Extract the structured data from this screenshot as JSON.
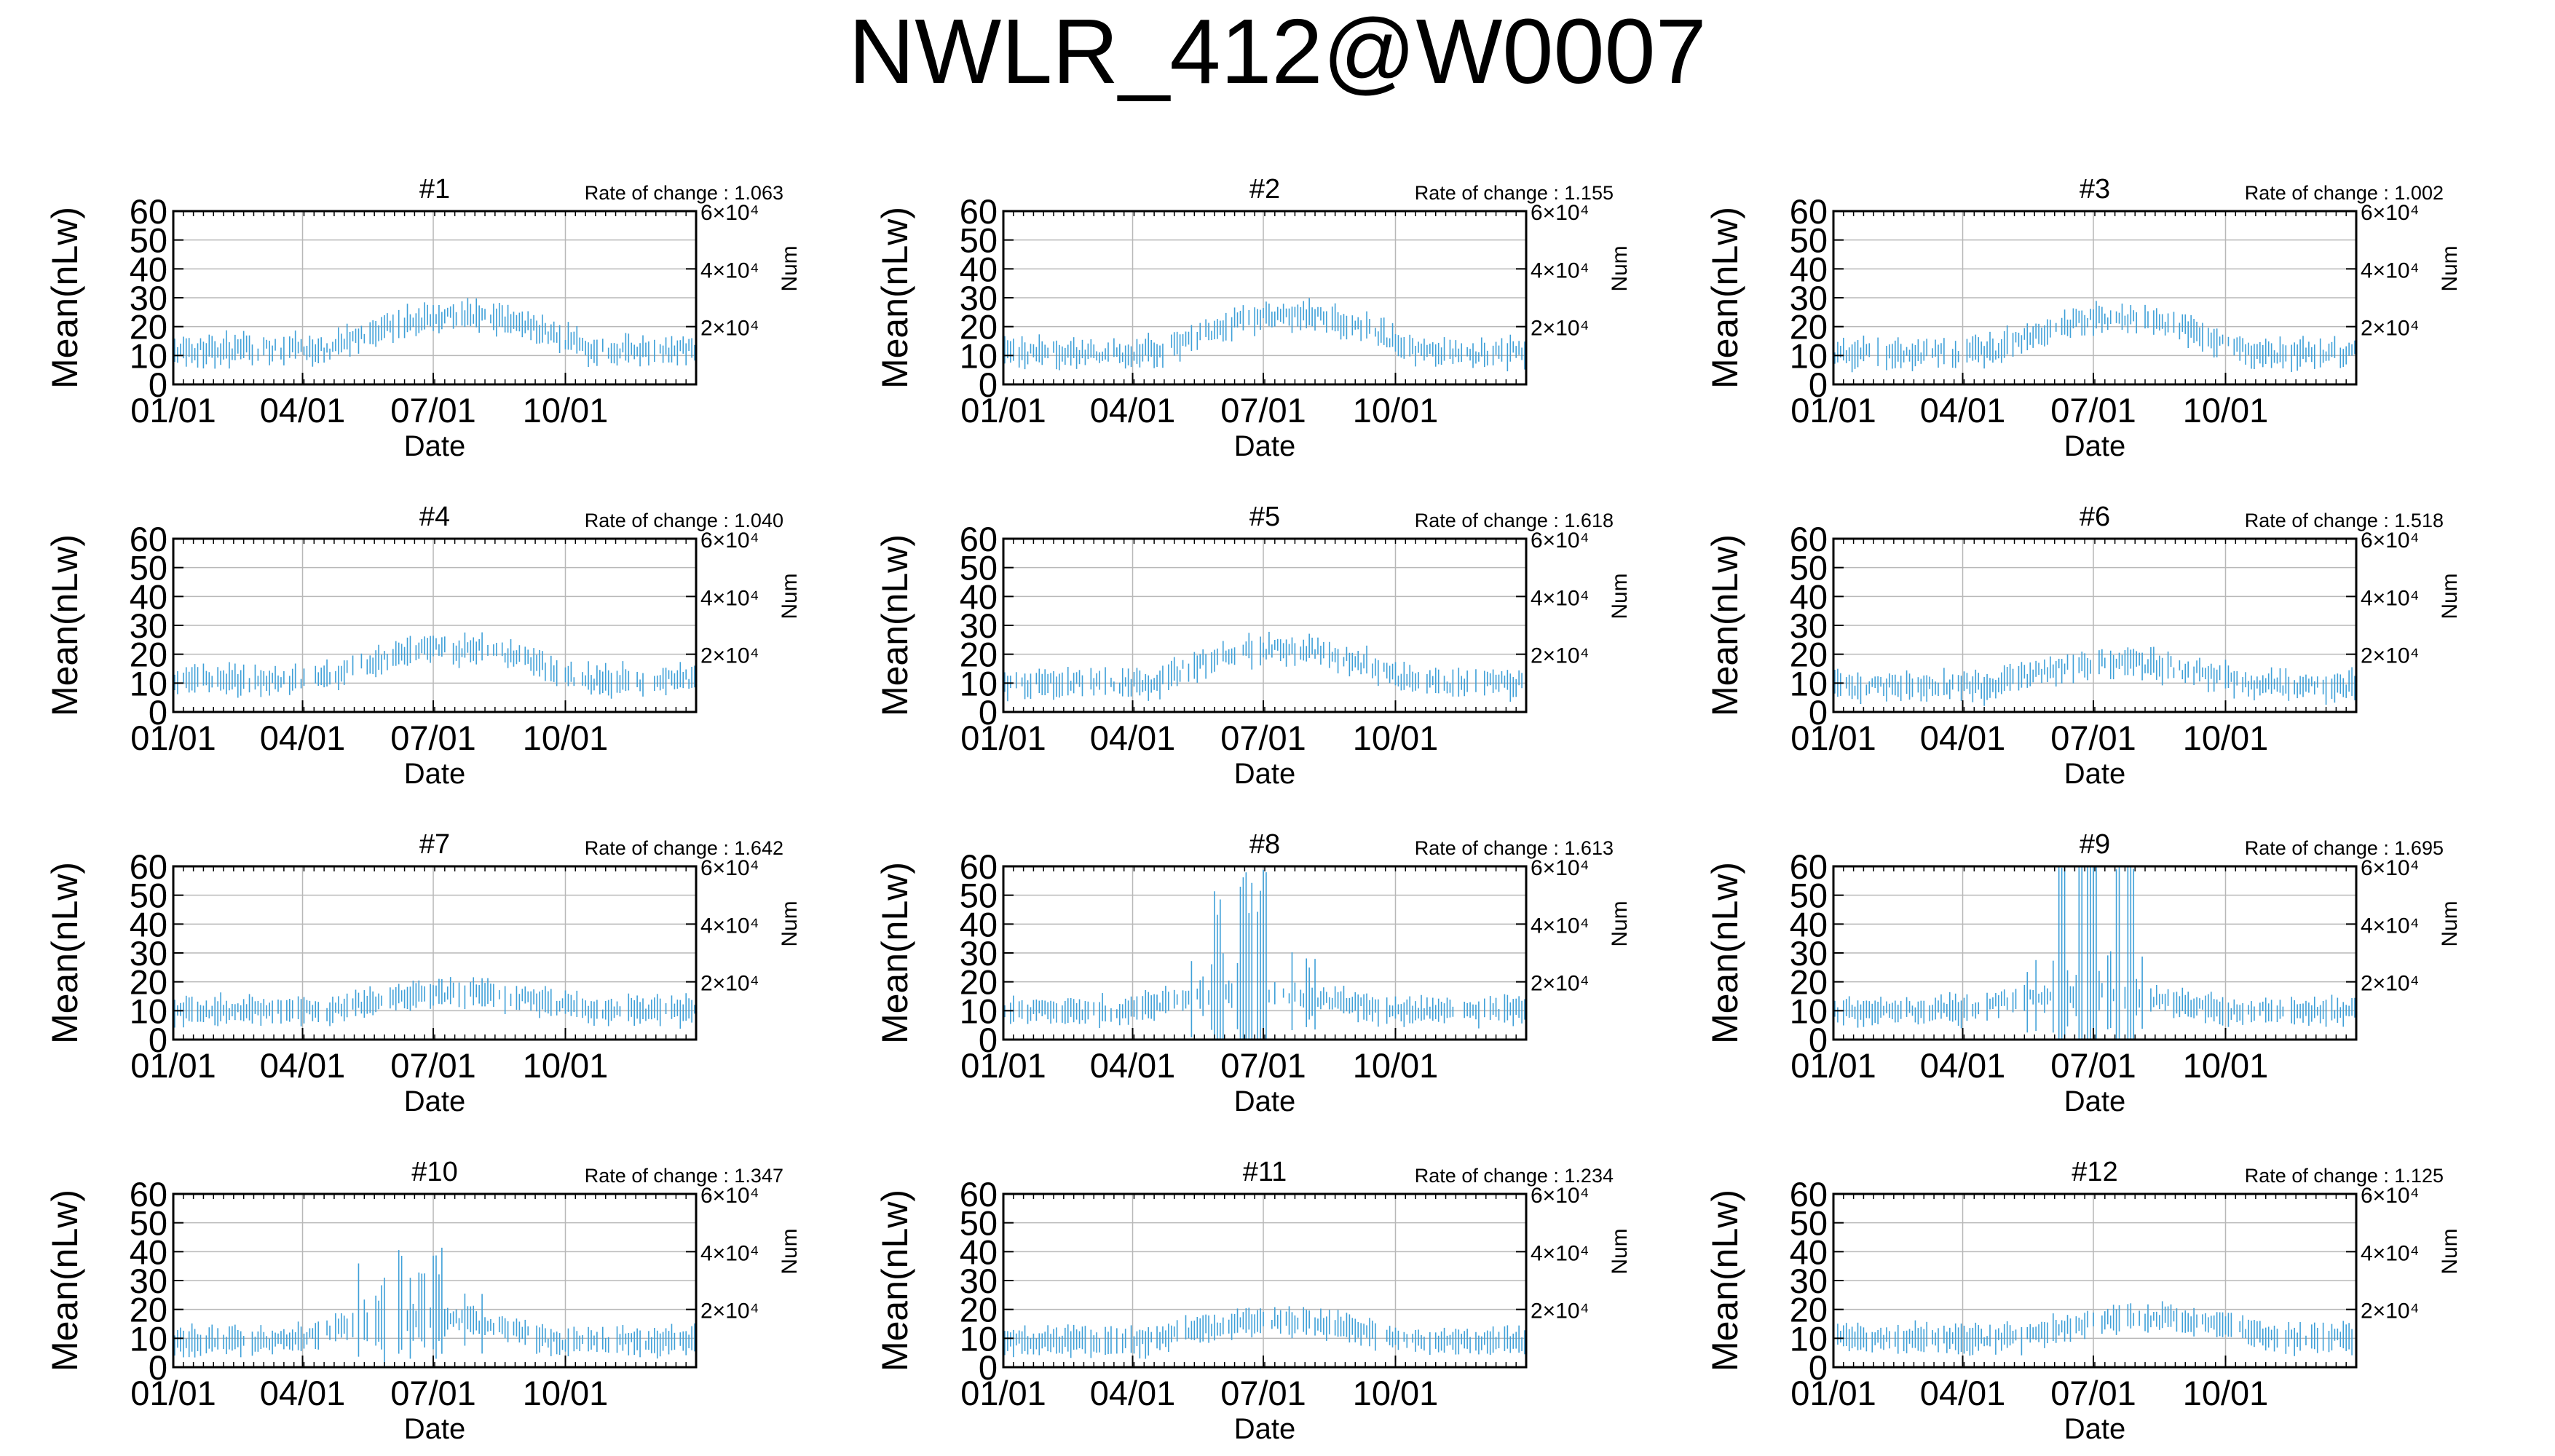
{
  "title": "NWLR_412@W0007",
  "colors": {
    "data": "#3fa0d8",
    "grid": "#b8b8b8",
    "axis": "#000000"
  },
  "chart_data": {
    "type": "scatter",
    "layout": "4x3 grid of panels",
    "grid": true,
    "shared_axes": {
      "xlabel": "Date",
      "ylabel": "Mean(nLw)",
      "ylim": [
        0,
        60
      ],
      "yticks": [
        0,
        10,
        20,
        30,
        40,
        50,
        60
      ],
      "x_domain": [
        "01/01",
        "12/31"
      ],
      "xticks": [
        {
          "label": "01/01",
          "day_of_year": 1
        },
        {
          "label": "04/01",
          "day_of_year": 91
        },
        {
          "label": "07/01",
          "day_of_year": 182
        },
        {
          "label": "10/01",
          "day_of_year": 274
        }
      ],
      "y2label": "Num",
      "y2lim": [
        0,
        60000
      ],
      "y2ticks": [
        {
          "value": 20000,
          "label": "2×10⁴"
        },
        {
          "value": 40000,
          "label": "4×10⁴"
        },
        {
          "value": 60000,
          "label": "6×10⁴"
        }
      ],
      "series_style": "vertical error bars around daily mean, light blue"
    },
    "rate_label": "Rate of change : ",
    "panels": [
      {
        "title": "#1",
        "rate_of_change": "1.063",
        "profile": {
          "base": 12,
          "amp": 12,
          "peak_day": 200,
          "noise": 4,
          "spike_days": [],
          "spike_max": 0
        }
      },
      {
        "title": "#2",
        "rate_of_change": "1.155",
        "profile": {
          "base": 11,
          "amp": 13,
          "peak_day": 200,
          "noise": 4,
          "spike_days": [],
          "spike_max": 0
        }
      },
      {
        "title": "#3",
        "rate_of_change": "1.002",
        "profile": {
          "base": 11,
          "amp": 12,
          "peak_day": 200,
          "noise": 4,
          "spike_days": [],
          "spike_max": 0
        }
      },
      {
        "title": "#4",
        "rate_of_change": "1.040",
        "profile": {
          "base": 11,
          "amp": 11,
          "peak_day": 195,
          "noise": 4,
          "spike_days": [],
          "spike_max": 0
        }
      },
      {
        "title": "#5",
        "rate_of_change": "1.618",
        "profile": {
          "base": 10,
          "amp": 12,
          "peak_day": 195,
          "noise": 4,
          "spike_days": [],
          "spike_max": 0
        }
      },
      {
        "title": "#6",
        "rate_of_change": "1.518",
        "profile": {
          "base": 9,
          "amp": 8,
          "peak_day": 200,
          "noise": 4,
          "spike_days": [],
          "spike_max": 0
        }
      },
      {
        "title": "#7",
        "rate_of_change": "1.642",
        "profile": {
          "base": 10,
          "amp": 6,
          "peak_day": 200,
          "noise": 3,
          "spike_days": [],
          "spike_max": 0
        }
      },
      {
        "title": "#8",
        "rate_of_change": "1.613",
        "profile": {
          "base": 10,
          "amp": 6,
          "peak_day": 175,
          "noise": 3,
          "spike_days": [
            150,
            168,
            175,
            182
          ],
          "spike_max": 50
        }
      },
      {
        "title": "#9",
        "rate_of_change": "1.695",
        "profile": {
          "base": 10,
          "amp": 6,
          "peak_day": 180,
          "noise": 3,
          "spike_days": [
            160,
            175,
            182,
            200,
            208
          ],
          "spike_max": 60
        }
      },
      {
        "title": "#10",
        "rate_of_change": "1.347",
        "profile": {
          "base": 9,
          "amp": 8,
          "peak_day": 175,
          "noise": 3,
          "spike_days": [
            130,
            160,
            175,
            185
          ],
          "spike_max": 36
        }
      },
      {
        "title": "#11",
        "rate_of_change": "1.234",
        "profile": {
          "base": 9,
          "amp": 7,
          "peak_day": 190,
          "noise": 3,
          "spike_days": [],
          "spike_max": 0
        }
      },
      {
        "title": "#12",
        "rate_of_change": "1.125",
        "profile": {
          "base": 10,
          "amp": 7,
          "peak_day": 220,
          "noise": 3,
          "spike_days": [],
          "spike_max": 0
        }
      }
    ]
  }
}
